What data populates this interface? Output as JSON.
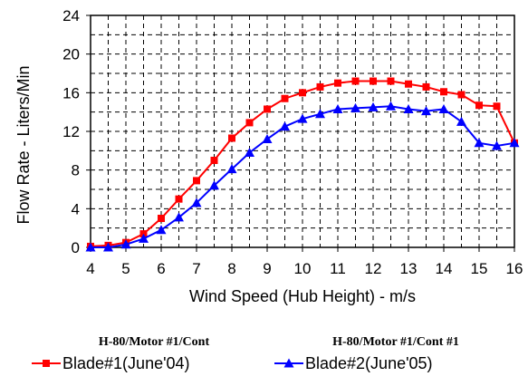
{
  "chart_data": {
    "type": "line",
    "xlabel": "Wind Speed (Hub Height) - m/s",
    "ylabel": "Flow Rate - Liters/Min",
    "xlim": [
      4,
      16
    ],
    "ylim": [
      0,
      24
    ],
    "x_ticks": [
      "4",
      "5",
      "6",
      "7",
      "8",
      "9",
      "10",
      "11",
      "12",
      "13",
      "14",
      "15",
      "16"
    ],
    "y_ticks": [
      "0",
      "4",
      "8",
      "12",
      "16",
      "20",
      "24"
    ],
    "grid": "dashed",
    "legend_position": "bottom",
    "series": [
      {
        "name": "Blade#1(June'04)",
        "legend_title": "H-80/Motor #1/Cont",
        "color": "#ff0000",
        "marker": "square",
        "x": [
          4,
          4.5,
          5,
          5.5,
          6,
          6.5,
          7,
          7.5,
          8,
          8.5,
          9,
          9.5,
          10,
          10.5,
          11,
          11.5,
          12,
          12.5,
          13,
          13.5,
          14,
          14.5,
          15,
          15.5,
          16
        ],
        "y": [
          0.1,
          0.2,
          0.5,
          1.4,
          3.0,
          5.0,
          6.9,
          9.0,
          11.3,
          12.9,
          14.3,
          15.4,
          16.0,
          16.6,
          17.0,
          17.2,
          17.2,
          17.2,
          16.9,
          16.6,
          16.1,
          15.8,
          14.7,
          14.6,
          10.8
        ]
      },
      {
        "name": "Blade#2(June'05)",
        "legend_title": "H-80/Motor #1/Cont #1",
        "color": "#0000ff",
        "marker": "triangle",
        "x": [
          4,
          4.5,
          5,
          5.5,
          6,
          6.5,
          7,
          7.5,
          8,
          8.5,
          9,
          9.5,
          10,
          10.5,
          11,
          11.5,
          12,
          12.5,
          13,
          13.5,
          14,
          14.5,
          15,
          15.5,
          16
        ],
        "y": [
          0.0,
          0.0,
          0.3,
          0.9,
          1.8,
          3.1,
          4.6,
          6.4,
          8.1,
          9.8,
          11.2,
          12.5,
          13.3,
          13.8,
          14.3,
          14.4,
          14.5,
          14.6,
          14.3,
          14.1,
          14.3,
          13.0,
          10.8,
          10.5,
          10.8
        ]
      }
    ]
  }
}
